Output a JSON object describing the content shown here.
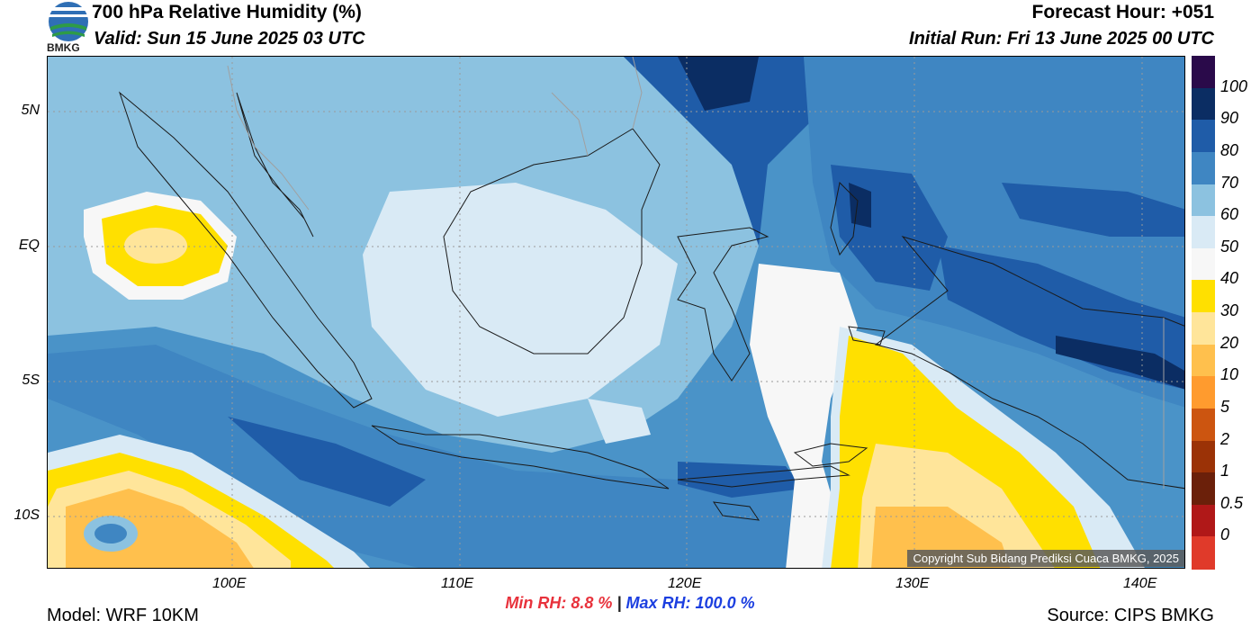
{
  "header": {
    "title": "700 hPa Relative Humidity (%)",
    "valid": "Valid: Sun 15 June 2025 03 UTC",
    "forecast_hour": "Forecast Hour: +051",
    "initial_run": "Initial Run: Fri 13 June 2025 00 UTC",
    "logo_text": "BMKG"
  },
  "map": {
    "lat_labels": [
      "5N",
      "EQ",
      "5S",
      "10S"
    ],
    "lon_labels": [
      "100E",
      "110E",
      "120E",
      "130E",
      "140E"
    ],
    "copyright": "Copyright Sub Bidang Prediksi Cuaca BMKG, 2025"
  },
  "colorbar": {
    "labels": [
      "100",
      "90",
      "80",
      "70",
      "60",
      "50",
      "40",
      "30",
      "20",
      "10",
      "5",
      "2",
      "1",
      "0.5",
      "0"
    ],
    "colors": [
      "#2a0a4a",
      "#0b2d63",
      "#1f5ca8",
      "#3f86c2",
      "#8cc2e0",
      "#d9eaf5",
      "#f7f7f7",
      "#ffe000",
      "#ffe59a",
      "#ffc04d",
      "#ff9b2e",
      "#cc5510",
      "#9b3206",
      "#6b200a",
      "#b01818",
      "#e03a2a"
    ]
  },
  "stats": {
    "min_label": "Min RH:",
    "min_value": "8.8 %",
    "separator": "|",
    "max_label": "Max RH:",
    "max_value": "100.0 %"
  },
  "footer": {
    "model": "Model: WRF 10KM",
    "source": "Source: CIPS BMKG"
  }
}
